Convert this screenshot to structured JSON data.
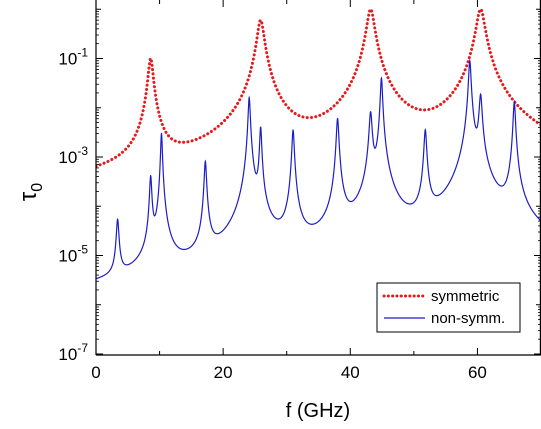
{
  "chart_data": {
    "type": "line",
    "title": "",
    "xlabel": "f (GHz)",
    "ylabel_symbol": "τ",
    "ylabel_subscript": "0",
    "x_scale": "linear",
    "y_scale": "log",
    "xlim": [
      0,
      70
    ],
    "ylim": [
      1e-07,
      1
    ],
    "x_ticks": [
      0,
      20,
      40,
      60
    ],
    "x_tick_labels": [
      "0",
      "20",
      "40",
      "60"
    ],
    "y_ticks": [
      1e-07,
      1e-05,
      0.001,
      0.1
    ],
    "y_tick_labels": [
      {
        "base": "10",
        "exp": "-7"
      },
      {
        "base": "10",
        "exp": "-5"
      },
      {
        "base": "10",
        "exp": "-3"
      },
      {
        "base": "10",
        "exp": "-1"
      }
    ],
    "grid": false,
    "legend_position": "bottom-right",
    "series": [
      {
        "name": "symmetric",
        "color": "#e41a1c",
        "style": "dotted",
        "floor": 1e-08,
        "resonances": [
          {
            "f": 8.6,
            "peak": 0.1,
            "width": 0.35
          },
          {
            "f": 25.9,
            "peak": 0.6,
            "width": 0.5
          },
          {
            "f": 43.2,
            "peak": 1.0,
            "width": 0.55
          },
          {
            "f": 60.5,
            "peak": 1.0,
            "width": 0.6
          }
        ]
      },
      {
        "name": "non-symm.",
        "color": "#1c1cc8",
        "style": "solid",
        "floor": 1e-09,
        "resonances": [
          {
            "f": 3.4,
            "peak": 5e-05,
            "width": 0.18
          },
          {
            "f": 8.6,
            "peak": 0.0004,
            "width": 0.15
          },
          {
            "f": 10.3,
            "peak": 0.003,
            "width": 0.12
          },
          {
            "f": 17.2,
            "peak": 0.0008,
            "width": 0.16
          },
          {
            "f": 24.1,
            "peak": 0.016,
            "width": 0.15
          },
          {
            "f": 25.9,
            "peak": 0.004,
            "width": 0.14
          },
          {
            "f": 31.0,
            "peak": 0.0035,
            "width": 0.16
          },
          {
            "f": 38.0,
            "peak": 0.006,
            "width": 0.17
          },
          {
            "f": 43.2,
            "peak": 0.008,
            "width": 0.2
          },
          {
            "f": 44.9,
            "peak": 0.04,
            "width": 0.15
          },
          {
            "f": 51.8,
            "peak": 0.0035,
            "width": 0.18
          },
          {
            "f": 58.8,
            "peak": 0.09,
            "width": 0.17
          },
          {
            "f": 60.5,
            "peak": 0.018,
            "width": 0.2
          },
          {
            "f": 65.8,
            "peak": 0.013,
            "width": 0.16
          }
        ]
      }
    ]
  }
}
